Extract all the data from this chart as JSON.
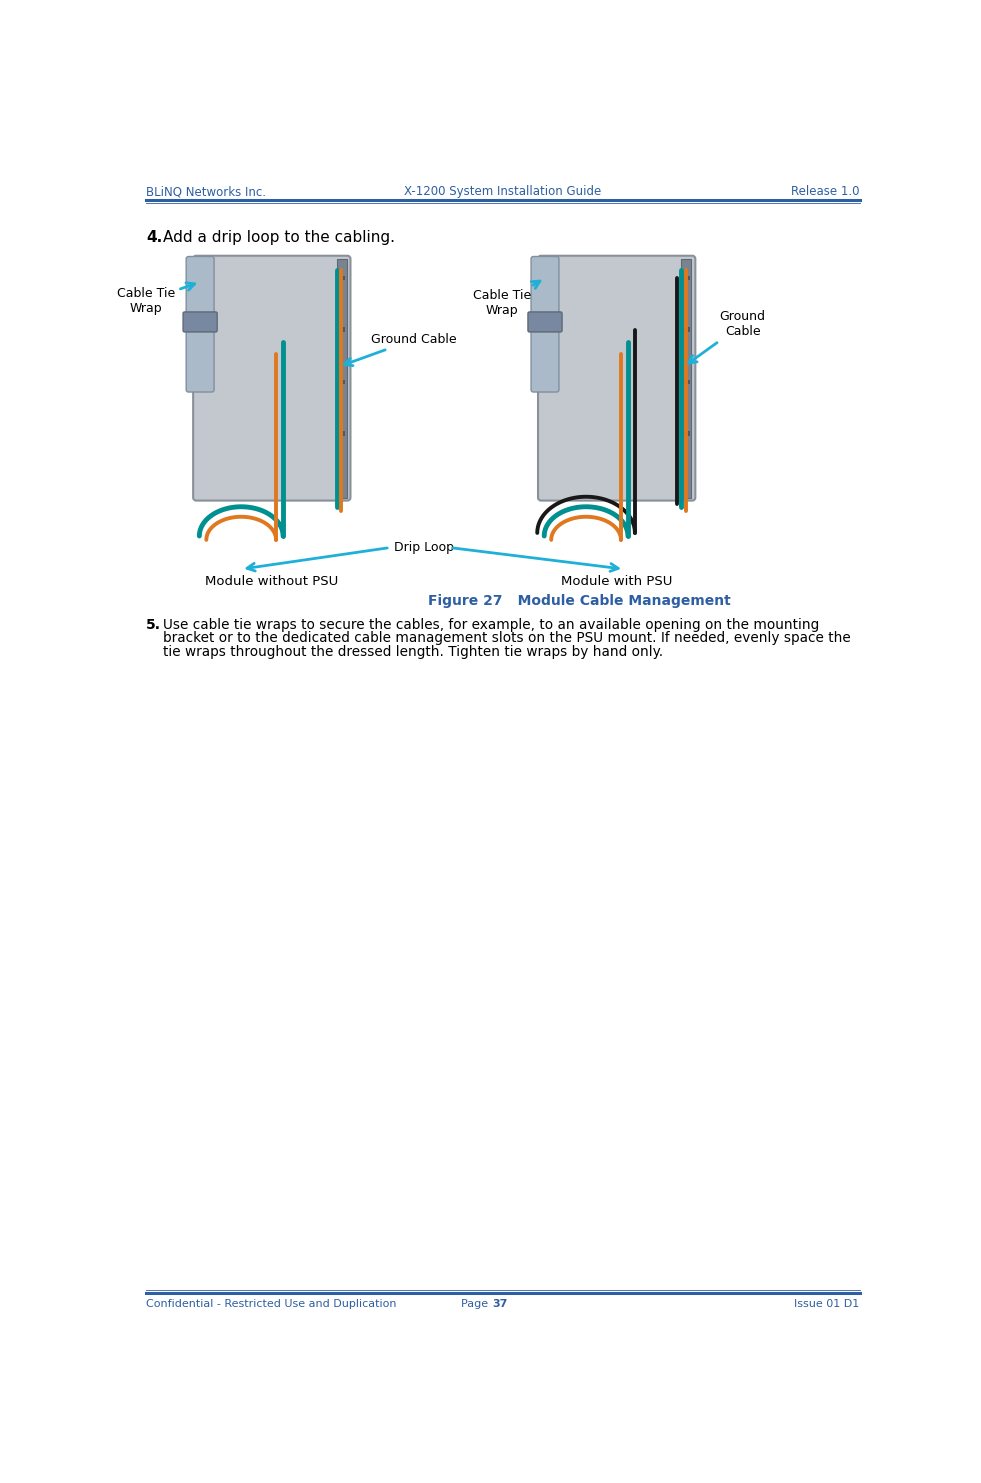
{
  "header_left": "BLiNQ Networks Inc.",
  "header_center": "X-1200 System Installation Guide",
  "header_right": "Release 1.0",
  "footer_left": "Confidential - Restricted Use and Duplication",
  "footer_center_pre": "Page ",
  "footer_page": "37",
  "footer_right": "Issue 01 D1",
  "header_color": "#2E5FA3",
  "step4_number": "4.",
  "step4_text": "Add a drip loop to the cabling.",
  "figure_caption_bold": "Figure 27",
  "figure_caption_rest": "   Module Cable Management",
  "figure_caption_color": "#2E5FA3",
  "step5_number": "5.",
  "step5_text": "Use cable tie wraps to secure the cables, for example, to an available opening on the mounting bracket or to the dedicated cable management slots on the PSU mount. If needed, evenly space the tie wraps throughout the dressed length. Tighten tie wraps by hand only.",
  "label_cable_tie_wrap_left": "Cable Tie\nWrap",
  "label_ground_cable_center": "Ground Cable",
  "label_cable_tie_wrap_center": "Cable Tie\nWrap",
  "label_ground_cable_right": "Ground\nCable",
  "label_drip_loop": "Drip Loop",
  "label_module_without_psu": "Module without PSU",
  "label_module_with_psu": "Module with PSU",
  "arrow_color": "#1FB0D8",
  "background_color": "#FFFFFF",
  "text_color": "#000000",
  "teal_color": "#009090",
  "orange_color": "#E07820",
  "black_cable": "#181818",
  "gray_module": "#C2C8CE",
  "gray_dark": "#8A9098",
  "gray_pole": "#AABAC8",
  "gray_bracket": "#7A8490"
}
